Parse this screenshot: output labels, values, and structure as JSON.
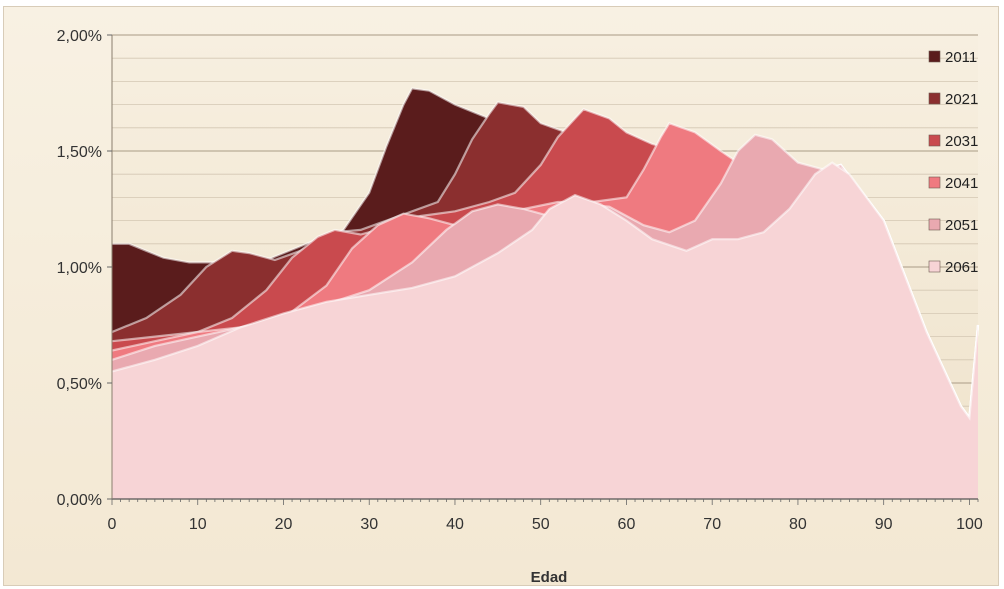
{
  "chart_data": {
    "type": "area",
    "xlabel": "Edad",
    "ylabel": "",
    "xlim": [
      0,
      101
    ],
    "ylim": [
      0,
      0.02
    ],
    "x_ticks": [
      0,
      10,
      20,
      30,
      40,
      50,
      60,
      70,
      80,
      90,
      100
    ],
    "x_tick_labels": [
      "0",
      "10",
      "20",
      "30",
      "40",
      "50",
      "60",
      "70",
      "80",
      "90",
      "100"
    ],
    "y_ticks": [
      0,
      0.005,
      0.01,
      0.015,
      0.02
    ],
    "y_tick_labels": [
      "0,00%",
      "0,50%",
      "1,00%",
      "1,50%",
      "2,00%"
    ],
    "grid": true,
    "legend_position": "right",
    "series": [
      {
        "name": "2011",
        "color": "#5a1c1c",
        "points": [
          [
            0,
            1.1
          ],
          [
            2,
            1.1
          ],
          [
            4,
            1.07
          ],
          [
            6,
            1.04
          ],
          [
            9,
            1.02
          ],
          [
            12,
            1.02
          ],
          [
            15,
            1.02
          ],
          [
            18,
            1.03
          ],
          [
            20,
            1.06
          ],
          [
            24,
            1.12
          ],
          [
            27,
            1.16
          ],
          [
            30,
            1.32
          ],
          [
            32,
            1.52
          ],
          [
            34,
            1.7
          ],
          [
            35,
            1.77
          ],
          [
            37,
            1.76
          ],
          [
            40,
            1.7
          ],
          [
            44,
            1.64
          ],
          [
            47,
            1.63
          ],
          [
            50,
            1.6
          ],
          [
            52,
            1.58
          ],
          [
            55,
            1.57
          ],
          [
            60,
            1.52
          ],
          [
            65,
            1.48
          ],
          [
            70,
            1.44
          ],
          [
            75,
            1.38
          ],
          [
            80,
            1.36
          ],
          [
            83,
            1.42
          ],
          [
            85,
            1.44
          ],
          [
            90,
            1.2
          ],
          [
            95,
            0.72
          ],
          [
            99,
            0.4
          ],
          [
            100,
            0.35
          ],
          [
            101,
            0.75
          ]
        ]
      },
      {
        "name": "2021",
        "color": "#8b2f2f",
        "points": [
          [
            0,
            0.72
          ],
          [
            4,
            0.78
          ],
          [
            8,
            0.88
          ],
          [
            11,
            1.0
          ],
          [
            14,
            1.07
          ],
          [
            16,
            1.06
          ],
          [
            19,
            1.03
          ],
          [
            22,
            1.07
          ],
          [
            26,
            1.15
          ],
          [
            29,
            1.16
          ],
          [
            32,
            1.2
          ],
          [
            35,
            1.24
          ],
          [
            38,
            1.28
          ],
          [
            40,
            1.4
          ],
          [
            42,
            1.55
          ],
          [
            44,
            1.66
          ],
          [
            45,
            1.71
          ],
          [
            48,
            1.69
          ],
          [
            50,
            1.62
          ],
          [
            53,
            1.58
          ],
          [
            56,
            1.57
          ],
          [
            60,
            1.52
          ],
          [
            65,
            1.48
          ],
          [
            70,
            1.44
          ],
          [
            75,
            1.38
          ],
          [
            80,
            1.36
          ],
          [
            83,
            1.42
          ],
          [
            85,
            1.44
          ],
          [
            90,
            1.2
          ],
          [
            95,
            0.72
          ],
          [
            99,
            0.4
          ],
          [
            100,
            0.35
          ],
          [
            101,
            0.75
          ]
        ]
      },
      {
        "name": "2031",
        "color": "#c94a4e",
        "points": [
          [
            0,
            0.68
          ],
          [
            5,
            0.7
          ],
          [
            10,
            0.72
          ],
          [
            14,
            0.78
          ],
          [
            18,
            0.9
          ],
          [
            21,
            1.04
          ],
          [
            24,
            1.13
          ],
          [
            26,
            1.16
          ],
          [
            29,
            1.14
          ],
          [
            32,
            1.17
          ],
          [
            36,
            1.22
          ],
          [
            40,
            1.24
          ],
          [
            44,
            1.28
          ],
          [
            47,
            1.32
          ],
          [
            50,
            1.44
          ],
          [
            52,
            1.56
          ],
          [
            54,
            1.64
          ],
          [
            55,
            1.68
          ],
          [
            58,
            1.64
          ],
          [
            60,
            1.58
          ],
          [
            63,
            1.53
          ],
          [
            66,
            1.5
          ],
          [
            70,
            1.44
          ],
          [
            75,
            1.38
          ],
          [
            80,
            1.36
          ],
          [
            83,
            1.42
          ],
          [
            85,
            1.44
          ],
          [
            90,
            1.2
          ],
          [
            95,
            0.72
          ],
          [
            99,
            0.4
          ],
          [
            100,
            0.35
          ],
          [
            101,
            0.75
          ]
        ]
      },
      {
        "name": "2041",
        "color": "#ef7a80",
        "points": [
          [
            0,
            0.64
          ],
          [
            5,
            0.68
          ],
          [
            10,
            0.72
          ],
          [
            15,
            0.74
          ],
          [
            20,
            0.78
          ],
          [
            25,
            0.92
          ],
          [
            28,
            1.08
          ],
          [
            31,
            1.18
          ],
          [
            34,
            1.23
          ],
          [
            37,
            1.21
          ],
          [
            40,
            1.18
          ],
          [
            44,
            1.23
          ],
          [
            48,
            1.25
          ],
          [
            52,
            1.28
          ],
          [
            56,
            1.28
          ],
          [
            60,
            1.3
          ],
          [
            62,
            1.42
          ],
          [
            64,
            1.56
          ],
          [
            65,
            1.62
          ],
          [
            68,
            1.58
          ],
          [
            71,
            1.5
          ],
          [
            75,
            1.4
          ],
          [
            80,
            1.36
          ],
          [
            83,
            1.42
          ],
          [
            85,
            1.44
          ],
          [
            90,
            1.2
          ],
          [
            95,
            0.72
          ],
          [
            99,
            0.4
          ],
          [
            100,
            0.35
          ],
          [
            101,
            0.75
          ]
        ]
      },
      {
        "name": "2051",
        "color": "#e9a9b0",
        "points": [
          [
            0,
            0.6
          ],
          [
            5,
            0.66
          ],
          [
            10,
            0.7
          ],
          [
            15,
            0.74
          ],
          [
            20,
            0.78
          ],
          [
            25,
            0.84
          ],
          [
            30,
            0.9
          ],
          [
            35,
            1.02
          ],
          [
            39,
            1.16
          ],
          [
            42,
            1.24
          ],
          [
            45,
            1.27
          ],
          [
            48,
            1.25
          ],
          [
            51,
            1.22
          ],
          [
            55,
            1.27
          ],
          [
            58,
            1.26
          ],
          [
            62,
            1.18
          ],
          [
            65,
            1.15
          ],
          [
            68,
            1.2
          ],
          [
            71,
            1.36
          ],
          [
            73,
            1.5
          ],
          [
            75,
            1.57
          ],
          [
            77,
            1.55
          ],
          [
            80,
            1.45
          ],
          [
            83,
            1.42
          ],
          [
            85,
            1.44
          ],
          [
            90,
            1.2
          ],
          [
            95,
            0.72
          ],
          [
            99,
            0.4
          ],
          [
            100,
            0.35
          ],
          [
            101,
            0.75
          ]
        ]
      },
      {
        "name": "2061",
        "color": "#f7d4d6",
        "points": [
          [
            0,
            0.55
          ],
          [
            5,
            0.6
          ],
          [
            10,
            0.66
          ],
          [
            15,
            0.74
          ],
          [
            20,
            0.8
          ],
          [
            25,
            0.85
          ],
          [
            30,
            0.88
          ],
          [
            35,
            0.91
          ],
          [
            40,
            0.96
          ],
          [
            45,
            1.06
          ],
          [
            49,
            1.16
          ],
          [
            51,
            1.25
          ],
          [
            54,
            1.31
          ],
          [
            57,
            1.27
          ],
          [
            60,
            1.2
          ],
          [
            63,
            1.12
          ],
          [
            67,
            1.07
          ],
          [
            70,
            1.12
          ],
          [
            73,
            1.12
          ],
          [
            76,
            1.15
          ],
          [
            79,
            1.25
          ],
          [
            82,
            1.4
          ],
          [
            84,
            1.45
          ],
          [
            86,
            1.4
          ],
          [
            90,
            1.2
          ],
          [
            95,
            0.72
          ],
          [
            99,
            0.4
          ],
          [
            100,
            0.35
          ],
          [
            101,
            0.75
          ]
        ]
      }
    ]
  }
}
